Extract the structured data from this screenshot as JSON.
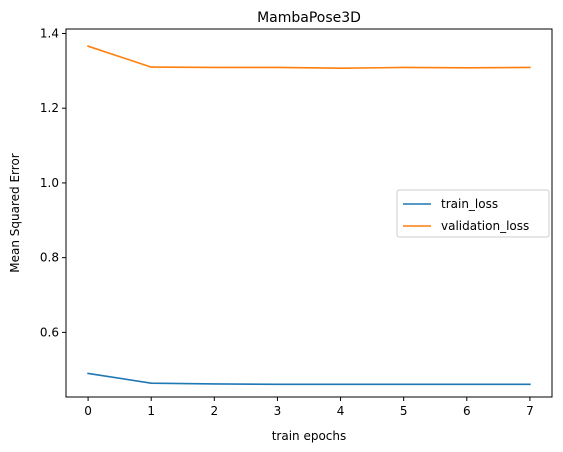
{
  "chart_data": {
    "type": "line",
    "title": "MambaPose3D",
    "xlabel": "train epochs",
    "ylabel": "Mean Squared Error",
    "x": [
      0,
      1,
      2,
      3,
      4,
      5,
      6,
      7
    ],
    "xticks": [
      "0",
      "1",
      "2",
      "3",
      "4",
      "5",
      "6",
      "7"
    ],
    "yticks": [
      "0.6",
      "0.8",
      "1.0",
      "1.2",
      "1.4"
    ],
    "ytick_values": [
      0.6,
      0.8,
      1.0,
      1.2,
      1.4
    ],
    "xlim": [
      -0.35,
      7.35
    ],
    "ylim": [
      0.427,
      1.412
    ],
    "grid": false,
    "legend_position": "center-right",
    "series": [
      {
        "name": "train_loss",
        "color": "#1f77b4",
        "values": [
          0.49,
          0.464,
          0.462,
          0.461,
          0.461,
          0.461,
          0.461,
          0.461
        ]
      },
      {
        "name": "validation_loss",
        "color": "#ff7f0e",
        "values": [
          1.366,
          1.31,
          1.309,
          1.309,
          1.307,
          1.309,
          1.308,
          1.309
        ]
      }
    ]
  }
}
